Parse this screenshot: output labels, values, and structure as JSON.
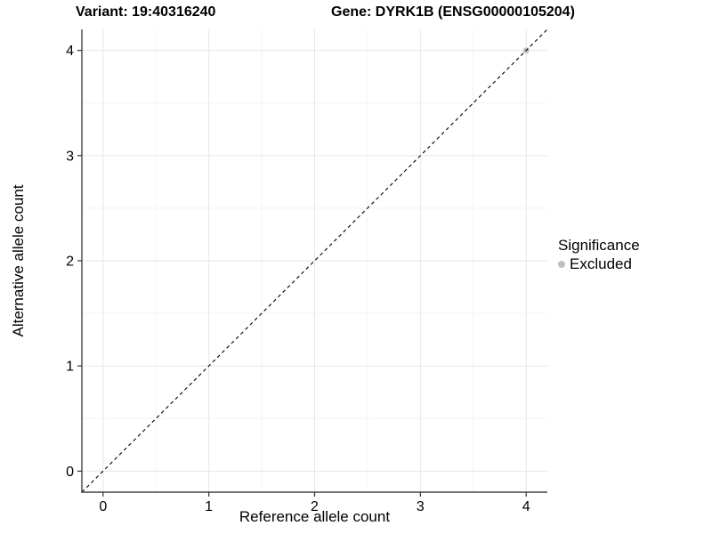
{
  "header": {
    "title_left": "Variant: 19:40316240",
    "title_right": "Gene: DYRK1B (ENSG00000105204)"
  },
  "chart_data": {
    "type": "scatter",
    "xlabel": "Reference allele count",
    "ylabel": "Alternative allele count",
    "xlim": [
      -0.2,
      4.2
    ],
    "ylim": [
      -0.2,
      4.2
    ],
    "xticks": [
      0,
      1,
      2,
      3,
      4
    ],
    "yticks": [
      0,
      1,
      2,
      3,
      4
    ],
    "xminor": [
      0.5,
      1.5,
      2.5,
      3.5
    ],
    "yminor": [
      0.5,
      1.5,
      2.5,
      3.5
    ],
    "grid": true,
    "identity_line": {
      "style": "dashed",
      "color": "#000000",
      "x1": -0.2,
      "y1": -0.2,
      "x2": 4.2,
      "y2": 4.2
    },
    "series": [
      {
        "name": "Excluded",
        "color": "#bebebe",
        "points": [
          [
            4,
            4
          ]
        ],
        "point_radius": 3.4
      }
    ],
    "legend": {
      "position": "right",
      "title": "Significance",
      "items": [
        {
          "label": "Excluded",
          "color": "#bebebe",
          "marker": "circle"
        }
      ]
    },
    "colors": {
      "background": "#ffffff",
      "grid_major": "#e6e6e6",
      "grid_minor": "#f3f3f3",
      "axis_line": "#434343",
      "tick_mark": "#333333",
      "text": "#000000"
    }
  }
}
